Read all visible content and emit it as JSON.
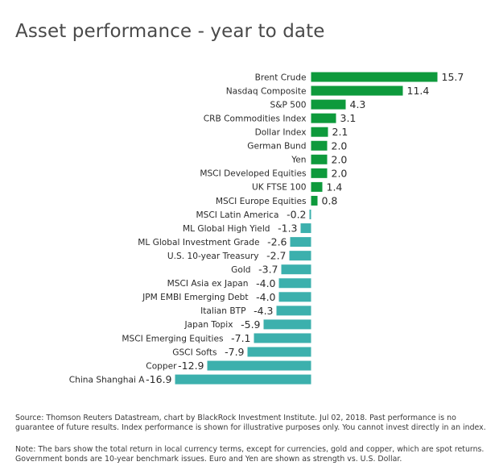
{
  "title": "Asset performance - year to date",
  "chart_data": {
    "type": "bar",
    "orientation": "horizontal",
    "title": "Asset performance - year to date",
    "categories": [
      "Brent Crude",
      "Nasdaq Composite",
      "S&P 500",
      "CRB Commodities Index",
      "Dollar Index",
      "German Bund",
      "Yen",
      "MSCI Developed Equities",
      "UK FTSE 100",
      "MSCI Europe Equities",
      "MSCI Latin America",
      "ML Global High Yield",
      "ML Global Investment Grade",
      "U.S. 10-year Treasury",
      "Gold",
      "MSCI Asia ex Japan",
      "JPM EMBI Emerging Debt",
      "Italian BTP",
      "Japan Topix",
      "MSCI Emerging Equities",
      "GSCI Softs",
      "Copper",
      "China Shanghai A"
    ],
    "values": [
      15.7,
      11.4,
      4.3,
      3.1,
      2.1,
      2.0,
      2.0,
      2.0,
      1.4,
      0.8,
      -0.2,
      -1.3,
      -2.6,
      -2.7,
      -3.7,
      -4.0,
      -4.0,
      -4.3,
      -5.9,
      -7.1,
      -7.9,
      -12.9,
      -16.9
    ],
    "value_labels": [
      "15.7",
      "11.4",
      "4.3",
      "3.1",
      "2.1",
      "2.0",
      "2.0",
      "2.0",
      "1.4",
      "0.8",
      "-0.2",
      "-1.3",
      "-2.6",
      "-2.7",
      "-3.7",
      "-4.0",
      "-4.0",
      "-4.3",
      "-5.9",
      "-7.1",
      "-7.9",
      "-12.9",
      "-16.9"
    ],
    "colors": {
      "positive": "#0e9a3c",
      "negative": "#3cb0ad"
    },
    "xlim": [
      -16.9,
      15.7
    ],
    "grid": false,
    "legend": "none"
  },
  "source": "Source: Thomson Reuters Datastream, chart by BlackRock Investment Institute. Jul 02, 2018. Past performance is no guarantee of future results.  Index performance is shown for illustrative purposes only.  You cannot invest directly in an index.",
  "note": "Note: The bars show the total return in local currency terms, except for currencies, gold and copper, which are spot returns. Government bonds are 10-year benchmark issues. Euro and Yen are shown as strength vs. U.S. Dollar."
}
